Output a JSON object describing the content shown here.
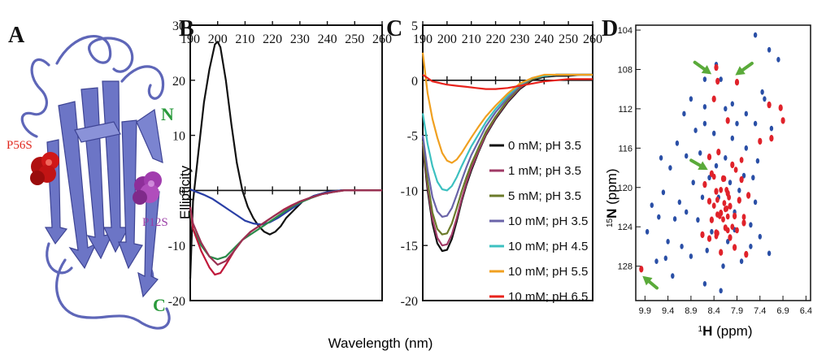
{
  "panel_letters": [
    "A",
    "B",
    "C",
    "D"
  ],
  "panel_a": {
    "mutation_labels": [
      {
        "text": "P56S",
        "color": "#e0281e"
      },
      {
        "text": "P12S",
        "color": "#9a3da6"
      }
    ],
    "terminus_labels": [
      {
        "text": "N",
        "color": "#2a9a3c"
      },
      {
        "text": "C",
        "color": "#2a9a3c"
      }
    ],
    "ribbon_color": "#6c75c6"
  },
  "shared_xlabel": "Wavelength (nm)",
  "chart_data": [
    {
      "panel": "B",
      "type": "line",
      "ylabel": "Ellipticity",
      "xlabel": "Wavelength (nm)",
      "xlim": [
        190,
        260
      ],
      "ylim": [
        -20,
        30
      ],
      "xticks": [
        190,
        200,
        210,
        220,
        230,
        240,
        250,
        260
      ],
      "yticks": [
        -20,
        -10,
        0,
        10,
        20,
        30
      ],
      "grid": false,
      "series": [
        {
          "color": "#111111",
          "x": [
            189,
            191,
            193,
            195,
            197,
            199,
            200,
            201,
            203,
            205,
            207,
            209,
            211,
            213,
            215,
            217,
            219,
            221,
            223,
            225,
            228,
            231,
            235,
            240,
            245,
            250,
            255,
            260
          ],
          "values": [
            -16,
            -2,
            7,
            16,
            22,
            26.5,
            27,
            26,
            20,
            12,
            5,
            0,
            -3,
            -5,
            -6.5,
            -7.5,
            -8,
            -7.5,
            -6.5,
            -5,
            -3.5,
            -2,
            -1,
            -0.3,
            0,
            0,
            0,
            0
          ]
        },
        {
          "color": "#2a3fa6",
          "x": [
            189,
            192,
            195,
            198,
            201,
            204,
            207,
            210,
            213,
            216,
            219,
            222,
            225,
            228,
            231,
            235,
            240,
            245,
            250,
            260
          ],
          "values": [
            0.2,
            -0.2,
            -0.8,
            -1.5,
            -2.5,
            -3.5,
            -4.5,
            -5.5,
            -6,
            -6.2,
            -5.8,
            -5,
            -4,
            -3,
            -2,
            -1,
            -0.3,
            0,
            0,
            0
          ]
        },
        {
          "color": "#2a8a4a",
          "x": [
            189,
            191,
            194,
            197,
            200,
            203,
            206,
            209,
            212,
            215,
            218,
            221,
            224,
            227,
            230,
            234,
            238,
            242,
            246,
            250,
            260
          ],
          "values": [
            -4,
            -7,
            -10,
            -12,
            -12.5,
            -12,
            -10.5,
            -9,
            -8,
            -7,
            -6,
            -5,
            -4,
            -3,
            -2.2,
            -1.4,
            -0.7,
            -0.3,
            0,
            0,
            0
          ]
        },
        {
          "color": "#c0183a",
          "x": [
            189,
            191,
            194,
            197,
            199,
            201,
            203,
            206,
            209,
            212,
            215,
            218,
            221,
            224,
            227,
            230,
            234,
            238,
            242,
            246,
            250,
            260
          ],
          "values": [
            -3,
            -7,
            -11,
            -14,
            -15.3,
            -15,
            -13.5,
            -11,
            -9,
            -7.5,
            -6.5,
            -5.5,
            -4.5,
            -3.5,
            -2.7,
            -2,
            -1.3,
            -0.7,
            -0.3,
            0,
            0,
            0
          ]
        },
        {
          "color": "#9a3052",
          "x": [
            189,
            191,
            194,
            197,
            200,
            203,
            206,
            209,
            212,
            215,
            218,
            221,
            224,
            227,
            230,
            234,
            238,
            242,
            246,
            250,
            260
          ],
          "values": [
            -3,
            -6,
            -9.5,
            -12,
            -13.5,
            -12.8,
            -11,
            -9,
            -7.5,
            -6.5,
            -5.5,
            -4.5,
            -3.6,
            -2.8,
            -2,
            -1.3,
            -0.7,
            -0.3,
            0,
            0,
            0
          ]
        }
      ]
    },
    {
      "panel": "C",
      "type": "line",
      "xlim": [
        190,
        260
      ],
      "ylim": [
        -20,
        5
      ],
      "xticks": [
        190,
        200,
        210,
        220,
        230,
        240,
        250,
        260
      ],
      "yticks": [
        -20,
        -15,
        -10,
        -5,
        0,
        5
      ],
      "grid": false,
      "legend_position": "right",
      "series": [
        {
          "name": "0 mM; pH 3.5",
          "color": "#111111",
          "x": [
            190,
            192,
            194,
            196,
            198,
            200,
            202,
            204,
            206,
            208,
            210,
            213,
            216,
            220,
            225,
            230,
            235,
            240,
            245,
            250,
            255,
            260
          ],
          "values": [
            -6,
            -10,
            -13,
            -14.8,
            -15.5,
            -15.4,
            -14.4,
            -12.8,
            -11,
            -9.5,
            -8.2,
            -6.5,
            -5,
            -3.5,
            -2,
            -0.8,
            0,
            0.3,
            0.4,
            0.4,
            0.5,
            0.5
          ]
        },
        {
          "name": "1 mM; pH 3.5",
          "color": "#a03a66",
          "x": [
            190,
            192,
            194,
            196,
            198,
            200,
            202,
            204,
            206,
            208,
            210,
            213,
            216,
            220,
            225,
            230,
            235,
            240,
            245,
            250,
            255,
            260
          ],
          "values": [
            -5.8,
            -9.6,
            -12.6,
            -14.3,
            -15,
            -14.9,
            -14,
            -12.5,
            -10.8,
            -9.3,
            -8,
            -6.4,
            -4.9,
            -3.4,
            -1.9,
            -0.7,
            0.1,
            0.4,
            0.5,
            0.5,
            0.5,
            0.5
          ]
        },
        {
          "name": "5 mM; pH 3.5",
          "color": "#6b7a2a",
          "x": [
            190,
            192,
            194,
            196,
            198,
            200,
            202,
            204,
            206,
            208,
            210,
            213,
            216,
            220,
            225,
            230,
            235,
            240,
            245,
            250,
            255,
            260
          ],
          "values": [
            -5.5,
            -9.2,
            -12,
            -13.5,
            -14,
            -13.9,
            -13,
            -11.6,
            -10.1,
            -8.8,
            -7.6,
            -6.1,
            -4.7,
            -3.3,
            -1.8,
            -0.6,
            0.1,
            0.4,
            0.5,
            0.5,
            0.5,
            0.5
          ]
        },
        {
          "name": "10 mM; pH 3.5",
          "color": "#6a63a8",
          "x": [
            190,
            192,
            194,
            196,
            198,
            200,
            202,
            204,
            206,
            208,
            210,
            213,
            216,
            220,
            225,
            230,
            235,
            240,
            245,
            250,
            255,
            260
          ],
          "values": [
            -5,
            -8.2,
            -10.6,
            -11.9,
            -12.4,
            -12.3,
            -11.6,
            -10.4,
            -9.1,
            -7.9,
            -6.8,
            -5.5,
            -4.2,
            -2.9,
            -1.6,
            -0.5,
            0.2,
            0.4,
            0.5,
            0.5,
            0.5,
            0.5
          ]
        },
        {
          "name": "10 mM; pH 4.5",
          "color": "#3cc0c0",
          "x": [
            190,
            192,
            194,
            196,
            198,
            200,
            202,
            204,
            206,
            208,
            210,
            213,
            216,
            220,
            225,
            230,
            235,
            240,
            245,
            250,
            255,
            260
          ],
          "values": [
            -3,
            -5.8,
            -7.8,
            -9.2,
            -9.9,
            -10,
            -9.6,
            -8.8,
            -7.8,
            -6.9,
            -6,
            -4.9,
            -3.8,
            -2.6,
            -1.4,
            -0.4,
            0.2,
            0.4,
            0.5,
            0.5,
            0.5,
            0.5
          ]
        },
        {
          "name": "10 mM; pH 5.5",
          "color": "#f0a020",
          "x": [
            190,
            192,
            194,
            196,
            198,
            200,
            202,
            204,
            206,
            208,
            210,
            213,
            216,
            220,
            225,
            230,
            235,
            240,
            245,
            250,
            255,
            260
          ],
          "values": [
            2.5,
            -1.2,
            -3.5,
            -5.2,
            -6.6,
            -7.3,
            -7.5,
            -7.2,
            -6.6,
            -5.9,
            -5.2,
            -4.2,
            -3.3,
            -2.3,
            -1.2,
            -0.3,
            0.2,
            0.5,
            0.5,
            0.5,
            0.5,
            0.5
          ]
        },
        {
          "name": "10 mM; pH 6.5",
          "color": "#e8231c",
          "x": [
            190,
            192,
            194,
            196,
            198,
            200,
            204,
            208,
            212,
            216,
            220,
            225,
            230,
            235,
            240,
            245,
            250,
            255,
            260
          ],
          "values": [
            0.5,
            0.2,
            -0.1,
            -0.2,
            -0.3,
            -0.4,
            -0.5,
            -0.6,
            -0.7,
            -0.8,
            -0.8,
            -0.7,
            -0.5,
            -0.3,
            -0.1,
            0,
            0.1,
            0.1,
            0.1
          ]
        }
      ]
    },
    {
      "panel": "D",
      "type": "scatter",
      "xlabel_nucleus": "1",
      "xlabel_symbol": "H",
      "xlabel_unit": " (ppm)",
      "ylabel_nucleus": "15",
      "ylabel_symbol": "N",
      "ylabel_unit": " (ppm)",
      "xlim": [
        10.1,
        6.3
      ],
      "ylim": [
        131.5,
        103.5
      ],
      "xticks": [
        9.9,
        9.4,
        8.9,
        8.4,
        7.9,
        7.4,
        6.9,
        6.4
      ],
      "yticks": [
        104,
        108,
        112,
        116,
        120,
        124,
        128
      ],
      "x_reversed": true,
      "y_reversed": true,
      "series_colors": [
        "#2a4fa6",
        "#e0222a"
      ],
      "arrow_color": "#5aaa3a",
      "arrows_at": [
        [
          8.42,
          108.6
        ],
        [
          7.97,
          108.7
        ],
        [
          8.5,
          118.3
        ],
        [
          9.98,
          128.9
        ]
      ],
      "peaks_blue": [
        [
          7.0,
          107
        ],
        [
          7.2,
          106
        ],
        [
          7.5,
          104.5
        ],
        [
          7.3,
          111
        ],
        [
          7.5,
          113.5
        ],
        [
          7.7,
          112.5
        ],
        [
          7.15,
          114
        ],
        [
          8.0,
          111.5
        ],
        [
          8.25,
          109
        ],
        [
          8.35,
          107.5
        ],
        [
          8.6,
          109
        ],
        [
          8.9,
          111
        ],
        [
          9.05,
          112.5
        ],
        [
          8.6,
          113.5
        ],
        [
          9.0,
          116.8
        ],
        [
          9.2,
          115.5
        ],
        [
          8.7,
          116.5
        ],
        [
          9.35,
          118
        ],
        [
          9.5,
          120.5
        ],
        [
          9.15,
          121.5
        ],
        [
          9.6,
          123
        ],
        [
          9.85,
          124.5
        ],
        [
          9.4,
          125.5
        ],
        [
          9.1,
          126
        ],
        [
          8.9,
          127
        ],
        [
          9.65,
          127.5
        ],
        [
          9.3,
          129
        ],
        [
          8.6,
          129.8
        ],
        [
          8.2,
          128
        ],
        [
          7.8,
          127.5
        ],
        [
          7.6,
          126
        ],
        [
          7.4,
          125
        ],
        [
          7.2,
          126.7
        ],
        [
          7.5,
          121.5
        ],
        [
          7.55,
          119
        ],
        [
          7.45,
          117.3
        ],
        [
          7.7,
          116
        ],
        [
          8.0,
          115
        ],
        [
          8.15,
          117
        ],
        [
          8.5,
          119
        ],
        [
          8.65,
          121
        ],
        [
          8.75,
          123.3
        ],
        [
          8.45,
          124.5
        ],
        [
          8.1,
          125.5
        ],
        [
          8.85,
          119.5
        ],
        [
          9.0,
          122.5
        ],
        [
          9.25,
          123.2
        ],
        [
          8.3,
          121
        ],
        [
          7.95,
          122.5
        ],
        [
          7.85,
          120.3
        ],
        [
          7.75,
          118.8
        ],
        [
          8.05,
          119.5
        ],
        [
          8.35,
          117.8
        ],
        [
          7.9,
          113.5
        ],
        [
          8.15,
          112
        ],
        [
          8.4,
          114.5
        ],
        [
          7.6,
          123.8
        ],
        [
          8.55,
          126.4
        ],
        [
          9.55,
          117
        ],
        [
          9.75,
          121.8
        ],
        [
          9.45,
          127.2
        ],
        [
          8.25,
          130.5
        ],
        [
          7.95,
          124.3
        ],
        [
          8.6,
          111.8
        ],
        [
          7.35,
          110.3
        ],
        [
          8.8,
          114.2
        ]
      ],
      "peaks_red": [
        [
          8.35,
          107.8
        ],
        [
          8.32,
          109.2
        ],
        [
          7.9,
          109.3
        ],
        [
          7.2,
          111.6
        ],
        [
          6.95,
          111.9
        ],
        [
          6.9,
          113.2
        ],
        [
          7.15,
          115
        ],
        [
          7.4,
          115.3
        ],
        [
          8.4,
          111
        ],
        [
          8.1,
          113.2
        ],
        [
          8.3,
          116.4
        ],
        [
          8.45,
          118.6
        ],
        [
          8.2,
          119.1
        ],
        [
          8.1,
          120.6
        ],
        [
          8.35,
          120.4
        ],
        [
          8.5,
          121.4
        ],
        [
          8.05,
          121.9
        ],
        [
          7.95,
          122.9
        ],
        [
          8.25,
          122.6
        ],
        [
          8.45,
          123.3
        ],
        [
          8.15,
          124.1
        ],
        [
          8.35,
          124.6
        ],
        [
          8.05,
          125.1
        ],
        [
          7.95,
          126.1
        ],
        [
          8.25,
          126.6
        ],
        [
          8.5,
          125.2
        ],
        [
          7.85,
          121.3
        ],
        [
          7.75,
          123.6
        ],
        [
          8.6,
          119.7
        ],
        [
          8.0,
          117.7
        ],
        [
          7.8,
          119.2
        ],
        [
          8.5,
          116.9
        ],
        [
          9.98,
          128.3
        ],
        [
          7.65,
          120.8
        ],
        [
          8.65,
          124.8
        ],
        [
          7.7,
          126.8
        ]
      ]
    }
  ]
}
